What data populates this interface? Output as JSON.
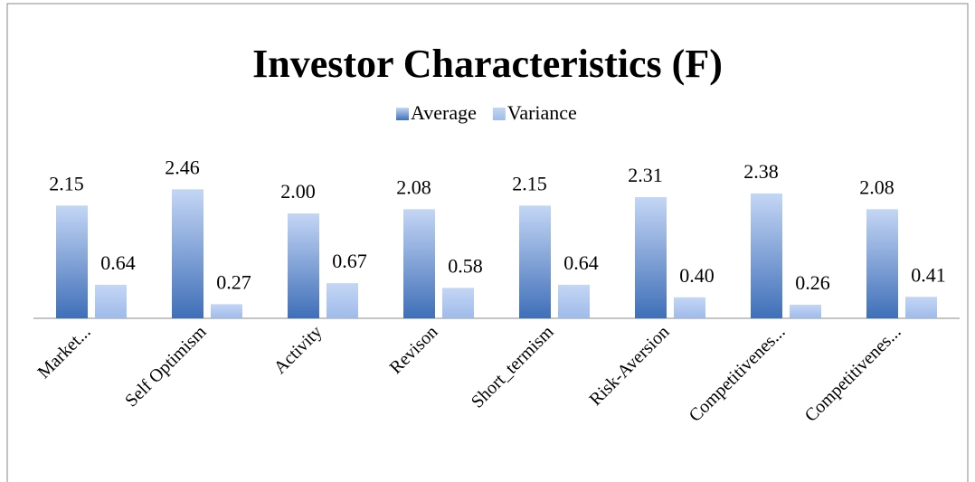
{
  "chart_data": {
    "type": "bar",
    "title": "Investor Characteristics (F)",
    "categories": [
      "Market...",
      "Self Optimism",
      "Activity",
      "Revison",
      "Short_termism",
      "Risk-Aversion",
      "Competitivenes...",
      "Competitivenes..."
    ],
    "series": [
      {
        "name": "Average",
        "color": "#3f6fb8",
        "values": [
          2.15,
          2.46,
          2.0,
          2.08,
          2.15,
          2.31,
          2.38,
          2.08
        ],
        "value_labels": [
          "2.15",
          "2.46",
          "2.00",
          "2.08",
          "2.15",
          "2.31",
          "2.38",
          "2.08"
        ]
      },
      {
        "name": "Variance",
        "color": "#9fbbea",
        "values": [
          0.64,
          0.27,
          0.67,
          0.58,
          0.64,
          0.4,
          0.26,
          0.41
        ],
        "value_labels": [
          "0.64",
          "0.27",
          "0.67",
          "0.58",
          "0.64",
          "0.40",
          "0.26",
          "0.41"
        ]
      }
    ],
    "ylim": [
      0,
      3
    ],
    "legend": "top"
  }
}
